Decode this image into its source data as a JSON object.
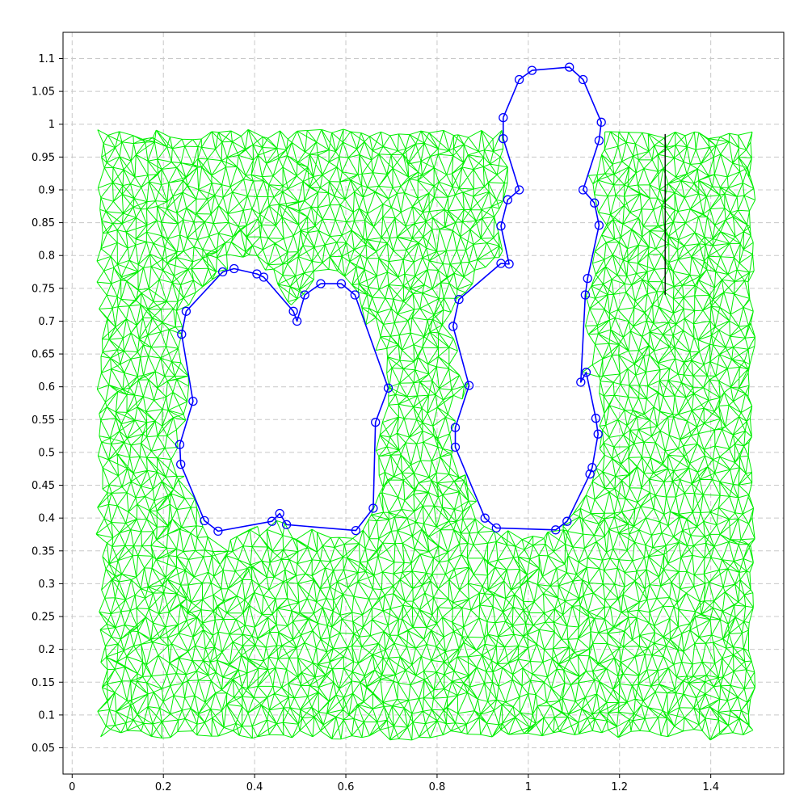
{
  "chart_data": {
    "type": "line",
    "title": "",
    "xlabel": "",
    "ylabel": "",
    "xlim": [
      -0.02,
      1.56
    ],
    "ylim": [
      0.01,
      1.14
    ],
    "xticks": [
      0,
      0.2,
      0.4,
      0.6,
      0.8,
      1,
      1.2,
      1.4
    ],
    "xtick_labels": [
      "0",
      "0.2",
      "0.4",
      "0.6",
      "0.8",
      "1",
      "1.2",
      "1.4"
    ],
    "yticks": [
      0.05,
      0.1,
      0.15,
      0.2,
      0.25,
      0.3,
      0.35,
      0.4,
      0.45,
      0.5,
      0.55,
      0.6,
      0.65,
      0.7,
      0.75,
      0.8,
      0.85,
      0.9,
      0.95,
      1,
      1.05,
      1.1
    ],
    "ytick_labels": [
      "0.05",
      "0.1",
      "0.15",
      "0.2",
      "0.25",
      "0.3",
      "0.35",
      "0.4",
      "0.45",
      "0.5",
      "0.55",
      "0.6",
      "0.65",
      "0.7",
      "0.75",
      "0.8",
      "0.85",
      "0.9",
      "0.95",
      "1",
      "1.05",
      "1.1"
    ],
    "grid": true,
    "legend": "none",
    "colors": {
      "mesh": "#00ee00",
      "boundary": "#0000ff",
      "segment": "#000000"
    },
    "mesh": {
      "x_range": [
        0.06,
        1.49
      ],
      "y_range": [
        0.07,
        0.99
      ],
      "spacing": 0.022,
      "holes": [
        [
          [
            0.24,
            0.68
          ],
          [
            0.25,
            0.715
          ],
          [
            0.33,
            0.775
          ],
          [
            0.355,
            0.78
          ],
          [
            0.405,
            0.772
          ],
          [
            0.42,
            0.767
          ],
          [
            0.485,
            0.715
          ],
          [
            0.493,
            0.7
          ],
          [
            0.51,
            0.74
          ],
          [
            0.545,
            0.757
          ],
          [
            0.59,
            0.757
          ],
          [
            0.62,
            0.74
          ],
          [
            0.693,
            0.598
          ],
          [
            0.665,
            0.546
          ],
          [
            0.66,
            0.415
          ],
          [
            0.622,
            0.381
          ],
          [
            0.47,
            0.39
          ],
          [
            0.455,
            0.407
          ],
          [
            0.438,
            0.395
          ],
          [
            0.32,
            0.38
          ],
          [
            0.29,
            0.396
          ],
          [
            0.238,
            0.482
          ],
          [
            0.236,
            0.512
          ],
          [
            0.265,
            0.578
          ]
        ],
        [
          [
            0.945,
            1.01
          ],
          [
            0.98,
            1.068
          ],
          [
            1.008,
            1.082
          ],
          [
            1.09,
            1.087
          ],
          [
            1.12,
            1.068
          ],
          [
            1.16,
            1.003
          ],
          [
            1.155,
            0.975
          ],
          [
            1.12,
            0.9
          ],
          [
            1.145,
            0.88
          ],
          [
            1.155,
            0.846
          ],
          [
            1.13,
            0.765
          ],
          [
            1.125,
            0.74
          ],
          [
            1.115,
            0.607
          ],
          [
            1.127,
            0.622
          ],
          [
            1.148,
            0.552
          ],
          [
            1.153,
            0.528
          ],
          [
            1.14,
            0.477
          ],
          [
            1.135,
            0.467
          ],
          [
            1.085,
            0.395
          ],
          [
            1.06,
            0.382
          ],
          [
            0.93,
            0.385
          ],
          [
            0.905,
            0.4
          ],
          [
            0.84,
            0.508
          ],
          [
            0.84,
            0.538
          ],
          [
            0.87,
            0.602
          ],
          [
            0.835,
            0.692
          ],
          [
            0.848,
            0.733
          ],
          [
            0.94,
            0.788
          ],
          [
            0.958,
            0.787
          ],
          [
            0.94,
            0.845
          ],
          [
            0.955,
            0.885
          ],
          [
            0.98,
            0.9
          ],
          [
            0.945,
            0.978
          ]
        ]
      ]
    },
    "series": [
      {
        "x": [
          0.24,
          0.25,
          0.33,
          0.355,
          0.405,
          0.42,
          0.485,
          0.493,
          0.51,
          0.545,
          0.59,
          0.62,
          0.693,
          0.665,
          0.66,
          0.622,
          0.47,
          0.455,
          0.438,
          0.32,
          0.29,
          0.238,
          0.236,
          0.265,
          0.24
        ],
        "y": [
          0.68,
          0.715,
          0.775,
          0.78,
          0.772,
          0.767,
          0.715,
          0.7,
          0.74,
          0.757,
          0.757,
          0.74,
          0.598,
          0.546,
          0.415,
          0.381,
          0.39,
          0.407,
          0.395,
          0.38,
          0.396,
          0.482,
          0.512,
          0.578,
          0.68
        ]
      },
      {
        "x": [
          0.945,
          0.98,
          1.008,
          1.09,
          1.12,
          1.16,
          1.155,
          1.12,
          1.145,
          1.155,
          1.13,
          1.125,
          1.115,
          1.127,
          1.148,
          1.153,
          1.14,
          1.135,
          1.085,
          1.06,
          0.93,
          0.905,
          0.84,
          0.84,
          0.87,
          0.835,
          0.848,
          0.94,
          0.958,
          0.94,
          0.955,
          0.98,
          0.945,
          0.945
        ],
        "y": [
          1.01,
          1.068,
          1.082,
          1.087,
          1.068,
          1.003,
          0.975,
          0.9,
          0.88,
          0.846,
          0.765,
          0.74,
          0.607,
          0.622,
          0.552,
          0.528,
          0.477,
          0.467,
          0.395,
          0.382,
          0.385,
          0.4,
          0.508,
          0.538,
          0.602,
          0.692,
          0.733,
          0.788,
          0.787,
          0.845,
          0.885,
          0.9,
          0.978,
          1.01
        ]
      }
    ],
    "segment": {
      "x": [
        1.3,
        1.3
      ],
      "y": [
        0.74,
        0.985
      ]
    }
  }
}
